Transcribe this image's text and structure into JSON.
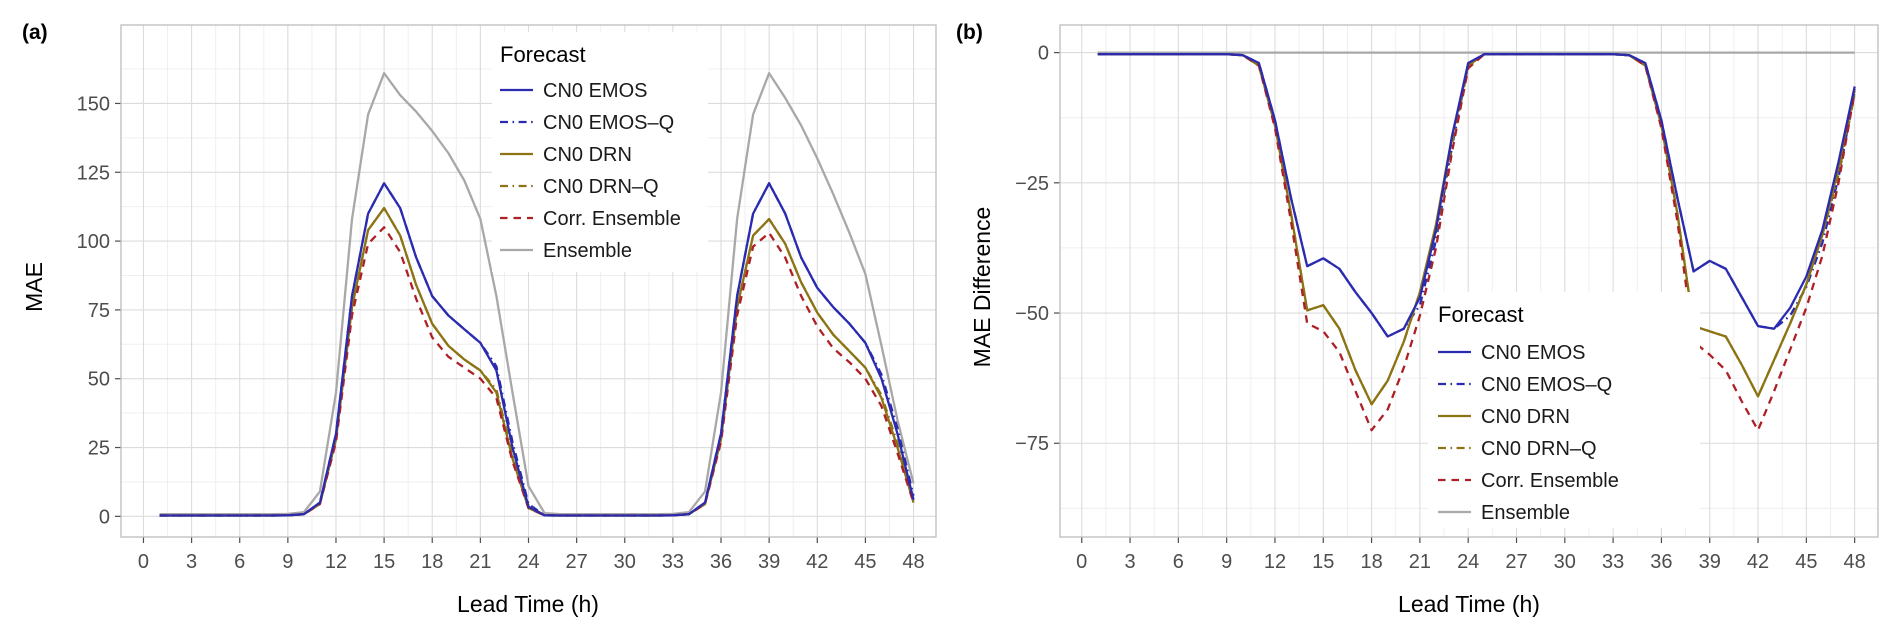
{
  "figure": {
    "panels": [
      {
        "label": "(a)",
        "x_axis": {
          "title": "Lead Time (h)",
          "ticks": [
            0,
            3,
            6,
            9,
            12,
            15,
            18,
            21,
            24,
            27,
            30,
            33,
            36,
            39,
            42,
            45,
            48
          ]
        },
        "y_axis": {
          "title": "MAE",
          "ticks": [
            0,
            25,
            50,
            75,
            100,
            125,
            150
          ]
        }
      },
      {
        "label": "(b)",
        "x_axis": {
          "title": "Lead Time (h)",
          "ticks": [
            0,
            3,
            6,
            9,
            12,
            15,
            18,
            21,
            24,
            27,
            30,
            33,
            36,
            39,
            42,
            45,
            48
          ]
        },
        "y_axis": {
          "title": "MAE Difference",
          "ticks": [
            0,
            -25,
            -50,
            -75
          ]
        }
      }
    ],
    "legend": {
      "title": "Forecast",
      "entries": [
        "CN0 EMOS",
        "CN0 EMOS–Q",
        "CN0 DRN",
        "CN0 DRN–Q",
        "Corr. Ensemble",
        "Ensemble"
      ]
    },
    "colors": {
      "emos_blue": "#2b2bb0",
      "drn_olive": "#8c7314",
      "corr_red": "#ac2026",
      "ensemble_gray": "#a8a8a8",
      "grid_major": "#dcdcdc",
      "grid_minor": "#efefef",
      "axis_text": "#4d4d4d"
    }
  },
  "chart_data": [
    {
      "type": "line",
      "panel": "(a)",
      "xlabel": "Lead Time (h)",
      "ylabel": "MAE",
      "xlim": [
        -1.4,
        49.4
      ],
      "ylim": [
        -7.5,
        178.5
      ],
      "x_ticks": [
        0,
        3,
        6,
        9,
        12,
        15,
        18,
        21,
        24,
        27,
        30,
        33,
        36,
        39,
        42,
        45,
        48
      ],
      "y_ticks": [
        0,
        25,
        50,
        75,
        100,
        125,
        150
      ],
      "grid": true,
      "legend_position": "inside-top",
      "x": [
        1,
        2,
        3,
        4,
        5,
        6,
        7,
        8,
        9,
        10,
        11,
        12,
        13,
        14,
        15,
        16,
        17,
        18,
        19,
        20,
        21,
        22,
        23,
        24,
        25,
        26,
        27,
        28,
        29,
        30,
        31,
        32,
        33,
        34,
        35,
        36,
        37,
        38,
        39,
        40,
        41,
        42,
        43,
        44,
        45,
        46,
        47,
        48
      ],
      "series": [
        {
          "name": "CN0 EMOS",
          "color": "#2b2bb0",
          "dash": "solid",
          "values": [
            0.3,
            0.3,
            0.3,
            0.3,
            0.3,
            0.3,
            0.3,
            0.3,
            0.4,
            0.8,
            5,
            30,
            80,
            110,
            121,
            112,
            94,
            80,
            73,
            68,
            63,
            53,
            25,
            3.5,
            0.4,
            0.3,
            0.3,
            0.3,
            0.3,
            0.3,
            0.3,
            0.3,
            0.4,
            0.8,
            5,
            30,
            80,
            110,
            121,
            110,
            94,
            83,
            76,
            70,
            63,
            50,
            30,
            6
          ]
        },
        {
          "name": "CN0 EMOS–Q",
          "color": "#2b2bb0",
          "dash": "dashdot",
          "values": [
            0.3,
            0.3,
            0.3,
            0.3,
            0.3,
            0.3,
            0.3,
            0.3,
            0.4,
            0.8,
            5,
            30,
            80,
            110,
            121,
            112,
            94,
            80,
            73,
            68,
            63,
            54.5,
            27,
            4.5,
            0.4,
            0.3,
            0.3,
            0.3,
            0.3,
            0.3,
            0.3,
            0.3,
            0.4,
            0.8,
            5,
            30,
            80,
            110,
            121,
            110,
            94,
            83,
            76,
            70,
            63,
            51.5,
            32,
            7.5
          ]
        },
        {
          "name": "CN0 DRN",
          "color": "#8c7314",
          "dash": "solid",
          "values": [
            0.3,
            0.3,
            0.3,
            0.3,
            0.3,
            0.3,
            0.3,
            0.3,
            0.4,
            0.8,
            4.5,
            28,
            76,
            104,
            112,
            102,
            84,
            70,
            62,
            57,
            53,
            45,
            21,
            3,
            0.4,
            0.3,
            0.3,
            0.3,
            0.3,
            0.3,
            0.3,
            0.3,
            0.4,
            0.8,
            4.5,
            28,
            76,
            102,
            108,
            99,
            85,
            74,
            66,
            60,
            54,
            43,
            25,
            5
          ]
        },
        {
          "name": "CN0 DRN–Q",
          "color": "#8c7314",
          "dash": "dashdot",
          "values": [
            0.3,
            0.3,
            0.3,
            0.3,
            0.3,
            0.3,
            0.3,
            0.3,
            0.4,
            0.8,
            4.5,
            28,
            76,
            104,
            112,
            102,
            84,
            70,
            62,
            57,
            53,
            46,
            22.5,
            3.8,
            0.4,
            0.3,
            0.3,
            0.3,
            0.3,
            0.3,
            0.3,
            0.3,
            0.4,
            0.8,
            4.5,
            28,
            76,
            102,
            108,
            99,
            85,
            74,
            66,
            60,
            54,
            44,
            26.5,
            6
          ]
        },
        {
          "name": "Corr. Ensemble",
          "color": "#ac2026",
          "dash": "dashed",
          "values": [
            0.3,
            0.3,
            0.3,
            0.3,
            0.3,
            0.3,
            0.3,
            0.3,
            0.4,
            0.8,
            4.5,
            27,
            73,
            99,
            105,
            96,
            79,
            65,
            58,
            54,
            50,
            43,
            20,
            3,
            0.4,
            0.3,
            0.3,
            0.3,
            0.3,
            0.3,
            0.3,
            0.3,
            0.4,
            0.8,
            4.5,
            27,
            73,
            98,
            103,
            94,
            80,
            69,
            61,
            56,
            50,
            40,
            23,
            5
          ]
        },
        {
          "name": "Ensemble",
          "color": "#a8a8a8",
          "dash": "solid",
          "values": [
            0.8,
            0.8,
            0.8,
            0.8,
            0.8,
            0.8,
            0.8,
            0.8,
            0.9,
            1.5,
            9,
            45,
            108,
            146,
            161,
            153,
            147,
            140,
            132,
            122,
            108,
            80,
            45,
            11,
            1.2,
            0.8,
            0.8,
            0.8,
            0.8,
            0.8,
            0.8,
            0.8,
            0.9,
            1.5,
            9,
            45,
            108,
            146,
            161,
            152,
            142,
            130,
            117,
            103,
            88,
            62,
            35,
            12
          ]
        }
      ]
    },
    {
      "type": "line",
      "panel": "(b)",
      "xlabel": "Lead Time (h)",
      "ylabel": "MAE Difference",
      "xlim": [
        -1.35,
        49.45
      ],
      "ylim": [
        -93,
        5.3
      ],
      "x_ticks": [
        0,
        3,
        6,
        9,
        12,
        15,
        18,
        21,
        24,
        27,
        30,
        33,
        36,
        39,
        42,
        45,
        48
      ],
      "y_ticks": [
        0,
        -25,
        -50,
        -75
      ],
      "grid": true,
      "legend_position": "inside-bottom-right",
      "x": [
        1,
        2,
        3,
        4,
        5,
        6,
        7,
        8,
        9,
        10,
        11,
        12,
        13,
        14,
        15,
        16,
        17,
        18,
        19,
        20,
        21,
        22,
        23,
        24,
        25,
        26,
        27,
        28,
        29,
        30,
        31,
        32,
        33,
        34,
        35,
        36,
        37,
        38,
        39,
        40,
        41,
        42,
        43,
        44,
        45,
        46,
        47,
        48
      ],
      "series": [
        {
          "name": "CN0 EMOS",
          "color": "#2b2bb0",
          "dash": "solid",
          "values": [
            -0.3,
            -0.3,
            -0.3,
            -0.3,
            -0.3,
            -0.3,
            -0.3,
            -0.3,
            -0.3,
            -0.5,
            -2,
            -13,
            -28,
            -41,
            -39.5,
            -41.5,
            -46,
            -50,
            -54.5,
            -53,
            -47,
            -34,
            -16,
            -2,
            -0.3,
            -0.3,
            -0.3,
            -0.3,
            -0.3,
            -0.3,
            -0.3,
            -0.3,
            -0.3,
            -0.5,
            -2,
            -13,
            -28,
            -42,
            -40,
            -41.5,
            -47,
            -52.5,
            -53,
            -49,
            -43,
            -34,
            -21,
            -6.5
          ]
        },
        {
          "name": "CN0 EMOS–Q",
          "color": "#2b2bb0",
          "dash": "dashdot",
          "values": [
            -0.3,
            -0.3,
            -0.3,
            -0.3,
            -0.3,
            -0.3,
            -0.3,
            -0.3,
            -0.3,
            -0.5,
            -2,
            -13,
            -28,
            -41,
            -39.5,
            -41.5,
            -46,
            -50,
            -54.5,
            -53,
            -48.5,
            -36,
            -18,
            -2.5,
            -0.3,
            -0.3,
            -0.3,
            -0.3,
            -0.3,
            -0.3,
            -0.3,
            -0.3,
            -0.3,
            -0.5,
            -2,
            -13,
            -28,
            -42,
            -40,
            -41.5,
            -47,
            -52.5,
            -53,
            -50.5,
            -45,
            -36.5,
            -24,
            -7.5
          ]
        },
        {
          "name": "CN0 DRN",
          "color": "#8c7314",
          "dash": "solid",
          "values": [
            -0.3,
            -0.3,
            -0.3,
            -0.3,
            -0.3,
            -0.3,
            -0.3,
            -0.3,
            -0.3,
            -0.5,
            -2.5,
            -14,
            -31,
            -49.5,
            -48.5,
            -53,
            -61,
            -67.5,
            -63,
            -55.5,
            -46,
            -33,
            -16,
            -2.5,
            -0.3,
            -0.3,
            -0.3,
            -0.3,
            -0.3,
            -0.3,
            -0.3,
            -0.3,
            -0.3,
            -0.5,
            -2.5,
            -14,
            -31,
            -52.5,
            -53.5,
            -54.5,
            -60,
            -66,
            -59,
            -52,
            -44.5,
            -35,
            -22,
            -7
          ]
        },
        {
          "name": "CN0 DRN–Q",
          "color": "#8c7314",
          "dash": "dashdot",
          "values": [
            -0.3,
            -0.3,
            -0.3,
            -0.3,
            -0.3,
            -0.3,
            -0.3,
            -0.3,
            -0.3,
            -0.5,
            -2.5,
            -14,
            -31,
            -49.5,
            -48.5,
            -53,
            -61,
            -67.5,
            -63,
            -55.5,
            -46,
            -34.5,
            -17.5,
            -2.8,
            -0.3,
            -0.3,
            -0.3,
            -0.3,
            -0.3,
            -0.3,
            -0.3,
            -0.3,
            -0.3,
            -0.5,
            -2.5,
            -14,
            -31,
            -52.5,
            -53.5,
            -54.5,
            -60,
            -66,
            -59,
            -52,
            -44.5,
            -35,
            -23.5,
            -8
          ]
        },
        {
          "name": "Corr. Ensemble",
          "color": "#ac2026",
          "dash": "dashed",
          "values": [
            -0.3,
            -0.3,
            -0.3,
            -0.3,
            -0.3,
            -0.3,
            -0.3,
            -0.3,
            -0.3,
            -0.5,
            -2.5,
            -14.5,
            -32.5,
            -52,
            -53.5,
            -57.5,
            -65,
            -72.5,
            -68.5,
            -60.5,
            -50.5,
            -37.5,
            -19,
            -3,
            -0.3,
            -0.3,
            -0.3,
            -0.3,
            -0.3,
            -0.3,
            -0.3,
            -0.3,
            -0.3,
            -0.5,
            -2.5,
            -14.5,
            -32.5,
            -55.5,
            -58,
            -61,
            -67,
            -72.5,
            -65,
            -57,
            -49,
            -39,
            -25,
            -7.5
          ]
        },
        {
          "name": "Ensemble",
          "color": "#a8a8a8",
          "dash": "solid",
          "values": [
            0,
            0,
            0,
            0,
            0,
            0,
            0,
            0,
            0,
            0,
            0,
            0,
            0,
            0,
            0,
            0,
            0,
            0,
            0,
            0,
            0,
            0,
            0,
            0,
            0,
            0,
            0,
            0,
            0,
            0,
            0,
            0,
            0,
            0,
            0,
            0,
            0,
            0,
            0,
            0,
            0,
            0,
            0,
            0,
            0,
            0,
            0,
            0
          ]
        }
      ]
    }
  ]
}
